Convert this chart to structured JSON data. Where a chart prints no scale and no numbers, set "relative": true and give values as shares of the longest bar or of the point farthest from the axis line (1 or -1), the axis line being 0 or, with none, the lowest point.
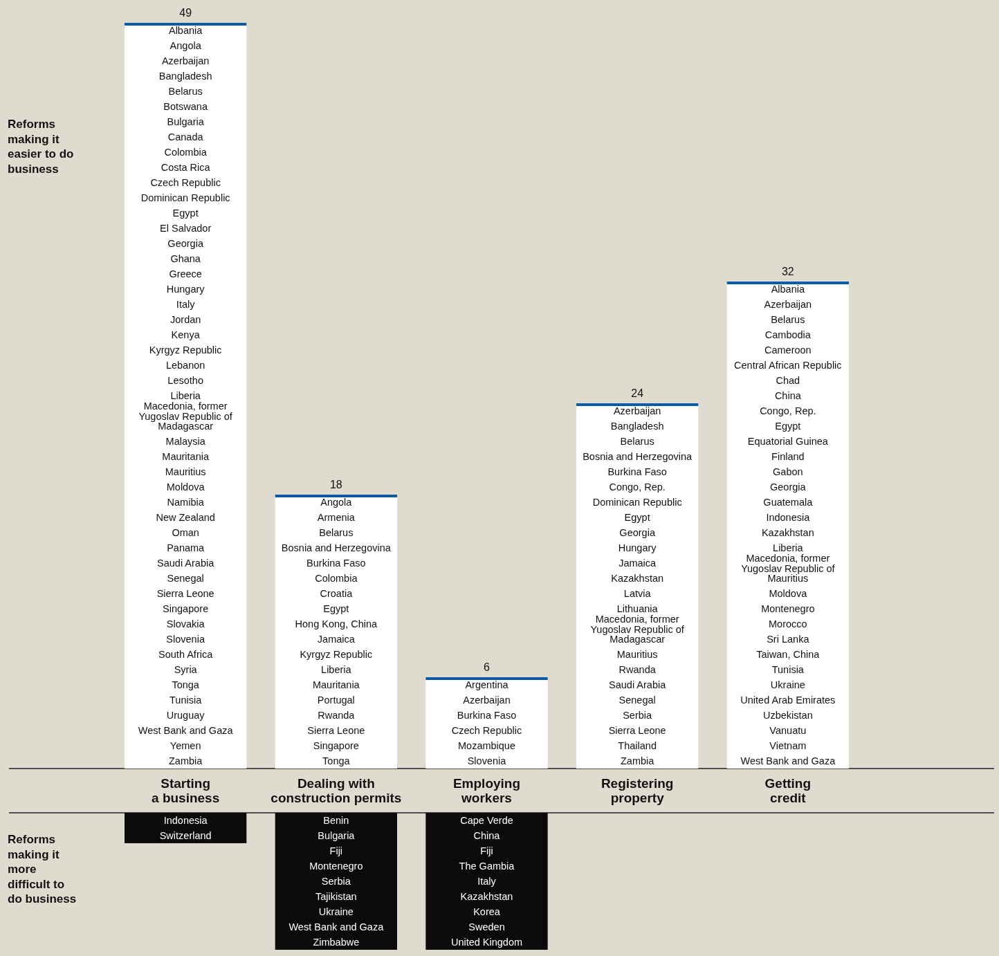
{
  "chart_data": [
    {
      "type": "bar",
      "categories": [
        "Starting a business",
        "Dealing with construction permits",
        "Employing workers",
        "Registering property",
        "Getting credit"
      ],
      "series": [
        {
          "name": "Reforms making it easier to do business",
          "color": "#ffffff",
          "values": [
            49,
            18,
            6,
            24,
            32
          ],
          "value_labels": [
            "49",
            "18",
            "6",
            "24",
            "32"
          ]
        }
      ],
      "annotations": [
        "Albania",
        "Angola",
        "Azerbaijan",
        "Bangladesh",
        "Belarus",
        "Botswana",
        "Bulgaria",
        "Canada",
        "Colombia",
        "Costa Rica",
        "Czech Republic",
        "Dominican Republic",
        "Egypt",
        "El Salvador",
        "Georgia",
        "Ghana",
        "Greece",
        "Hungary",
        "Italy",
        "Jordan",
        "Kenya",
        "Kyrgyz Republic",
        "Lebanon",
        "Lesotho",
        "Liberia",
        "Macedonia, former Yugoslav Republic of",
        "Madagascar",
        "Malaysia",
        "Mauritania",
        "Mauritius",
        "Moldova",
        "Namibia",
        "New Zealand",
        "Oman",
        "Panama",
        "Saudi Arabia",
        "Senegal",
        "Sierra Leone",
        "Singapore",
        "Slovakia",
        "Slovenia",
        "South Africa",
        "Syria",
        "Tonga",
        "Tunisia",
        "Uruguay",
        "West Bank and Gaza",
        "Yemen",
        "Zambia",
        "Angola",
        "Armenia",
        "Belarus",
        "Bosnia and Herzegovina",
        "Burkina Faso",
        "Colombia",
        "Croatia",
        "Egypt",
        "Hong Kong, China",
        "Jamaica",
        "Kyrgyz Republic",
        "Liberia",
        "Mauritania",
        "Portugal",
        "Rwanda",
        "Sierra Leone",
        "Singapore",
        "Tonga",
        "Argentina",
        "Azerbaijan",
        "Burkina Faso",
        "Czech Republic",
        "Mozambique",
        "Slovenia",
        "Azerbaijan",
        "Bangladesh",
        "Belarus",
        "Bosnia and Herzegovina",
        "Burkina Faso",
        "Congo, Rep.",
        "Dominican Republic",
        "Egypt",
        "Georgia",
        "Hungary",
        "Jamaica",
        "Kazakhstan",
        "Latvia",
        "Lithuania",
        "Macedonia, former Yugoslav Republic of",
        "Madagascar",
        "Mauritius",
        "Rwanda",
        "Saudi Arabia",
        "Senegal",
        "Serbia",
        "Sierra Leone",
        "Thailand",
        "Zambia",
        "Albania",
        "Azerbaijan",
        "Belarus",
        "Cambodia",
        "Cameroon",
        "Central African Republic",
        "Chad",
        "China",
        "Congo, Rep.",
        "Egypt",
        "Equatorial Guinea",
        "Finland",
        "Gabon",
        "Georgia",
        "Guatemala",
        "Indonesia",
        "Kazakhstan",
        "Liberia",
        "Macedonia, former Yugoslav Republic of",
        "Mauritius",
        "Moldova",
        "Montenegro",
        "Morocco",
        "Sri Lanka",
        "Taiwan, China",
        "Tunisia",
        "Ukraine",
        "United Arab Emirates",
        "Uzbekistan",
        "Vanuatu",
        "Vietnam",
        "West Bank and Gaza"
      ]
    },
    {
      "type": "bar",
      "relative": true,
      "categories": [
        null,
        null,
        null,
        null,
        null
      ],
      "series": [
        {
          "name": "Reforms making it more difficult to do business",
          "color": "#0b0b0b",
          "values": [
            -0.222,
            -1,
            -1,
            null,
            null
          ]
        }
      ],
      "annotations": [
        "Indonesia",
        "Switzerland",
        "Benin",
        "Bulgaria",
        "Fiji",
        "Montenegro",
        "Serbia",
        "Tajikistan",
        "Ukraine",
        "West Bank and Gaza",
        "Zimbabwe",
        "Cape Verde",
        "China",
        "Fiji",
        "The Gambia",
        "Italy",
        "Kazakhstan",
        "Korea",
        "Sweden",
        "United Kingdom"
      ]
    }
  ]
}
